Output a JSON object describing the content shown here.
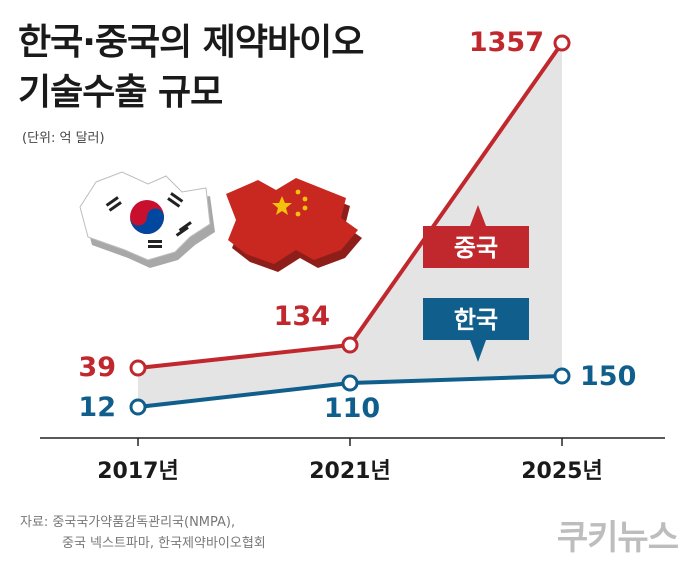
{
  "title_line1": "한국·중국의 제약바이오",
  "title_line2": "기술수출 규모",
  "unit": "(단위: 억 달러)",
  "source_line1": "자료: 중국국가약품감독관리국(NMPA),",
  "source_line2": "중국 넥스트파마, 한국제약바이오협회",
  "brand": "쿠키뉴스",
  "colors": {
    "china": "#c1282d",
    "korea": "#0f5e8c",
    "fill": "#e4e4e4"
  },
  "chart_data": {
    "type": "line",
    "title": "한국·중국의 제약바이오 기술수출 규모",
    "ylabel": "(단위: 억 달러)",
    "categories": [
      "2017년",
      "2021년",
      "2025년"
    ],
    "series": [
      {
        "name": "중국",
        "values": [
          39,
          134,
          1357
        ],
        "labels": [
          "39",
          "134",
          "1357"
        ]
      },
      {
        "name": "한국",
        "values": [
          12,
          110,
          150
        ],
        "labels": [
          "12",
          "110",
          "150"
        ]
      }
    ],
    "y_scale": "non-linear"
  }
}
